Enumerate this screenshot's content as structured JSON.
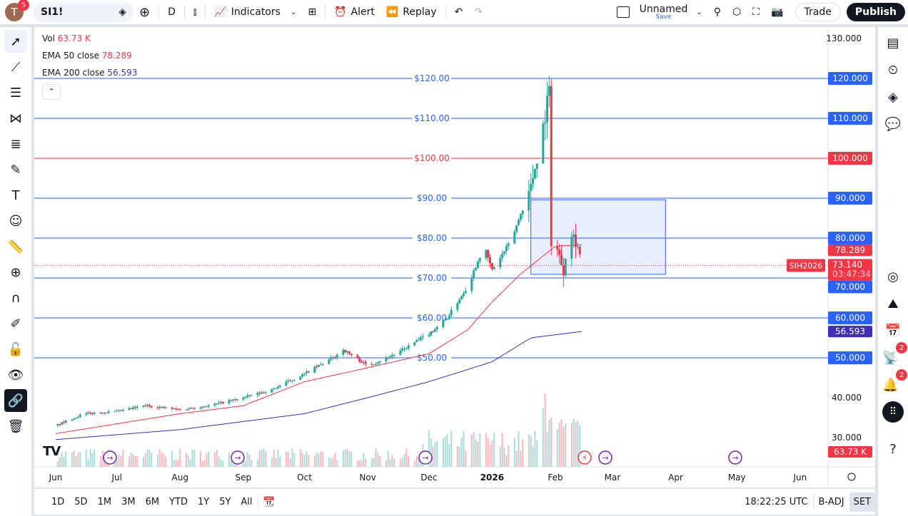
{
  "header": {
    "avatar_letter": "T",
    "notifications": "5",
    "symbol": "SI1!",
    "interval": "D",
    "indicators": "Indicators",
    "alert": "Alert",
    "replay": "Replay",
    "layout_name": "Unnamed",
    "layout_save": "Save",
    "trade": "Trade",
    "publish": "Publish"
  },
  "legend": {
    "vol_label": "Vol",
    "vol_value": "63.73 K",
    "ema50_label": "EMA 50 close",
    "ema50_value": "78.289",
    "ema200_label": "EMA 200 close",
    "ema200_value": "56.593"
  },
  "colors": {
    "up": "#26a69a",
    "down": "#f23645",
    "ema50": "#f23645",
    "ema200": "#3f2fb5",
    "hline": "#2962ff",
    "accent": "#2962ff"
  },
  "chart_data": {
    "type": "candlestick",
    "symbol": "SIH2026",
    "last_price": "73.140",
    "countdown": "03:47:34",
    "price_axis": [
      "130.000",
      "120.000",
      "110.000",
      "100.000",
      "90.000",
      "80.000",
      "70.000",
      "60.000",
      "50.000",
      "40.000",
      "30.000"
    ],
    "time_axis": [
      "Jun",
      "Jul",
      "Aug",
      "Sep",
      "Oct",
      "Nov",
      "Dec",
      "2026",
      "Feb",
      "Mar",
      "Apr",
      "May",
      "Jun"
    ],
    "horizontal_lines": [
      {
        "price": 120,
        "label": "$120.00",
        "axis": "120.000"
      },
      {
        "price": 110,
        "label": "$110.00",
        "axis": "110.000"
      },
      {
        "price": 100,
        "label": "$100.00",
        "axis": "100.000",
        "color": "#f23645"
      },
      {
        "price": 90,
        "label": "$90.00",
        "axis": "90.000"
      },
      {
        "price": 80,
        "label": "$80.00",
        "axis": "80.000"
      },
      {
        "price": 70,
        "label": "$70.00",
        "axis": "70.000"
      },
      {
        "price": 60,
        "label": "$60.00",
        "axis": "60.000"
      },
      {
        "price": 50,
        "label": "$50.00",
        "axis": "50.000"
      }
    ],
    "rectangle": {
      "from": "2026-01-20",
      "to": "2026-03-27",
      "top": 89.6,
      "bottom": 70.9
    },
    "close_anchors": [
      [
        "2025-06-01",
        33
      ],
      [
        "2025-06-15",
        36
      ],
      [
        "2025-07-01",
        36.5
      ],
      [
        "2025-07-15",
        38
      ],
      [
        "2025-08-01",
        37
      ],
      [
        "2025-08-15",
        38
      ],
      [
        "2025-09-01",
        40
      ],
      [
        "2025-09-15",
        42
      ],
      [
        "2025-10-01",
        46
      ],
      [
        "2025-10-15",
        50
      ],
      [
        "2025-10-20",
        52
      ],
      [
        "2025-11-01",
        48
      ],
      [
        "2025-11-15",
        51
      ],
      [
        "2025-12-01",
        56
      ],
      [
        "2025-12-10",
        60
      ],
      [
        "2025-12-20",
        68
      ],
      [
        "2025-12-28",
        78
      ],
      [
        "2026-01-01",
        72
      ],
      [
        "2026-01-10",
        79
      ],
      [
        "2026-01-20",
        93
      ],
      [
        "2026-01-25",
        105
      ],
      [
        "2026-01-29",
        117
      ],
      [
        "2026-01-30",
        80
      ],
      [
        "2026-02-02",
        77
      ],
      [
        "2026-02-05",
        72
      ],
      [
        "2026-02-08",
        83
      ],
      [
        "2026-02-12",
        78
      ],
      [
        "2026-02-14",
        73.14
      ]
    ],
    "ema50": [
      [
        "2025-06-01",
        31
      ],
      [
        "2025-08-01",
        36
      ],
      [
        "2025-09-01",
        38
      ],
      [
        "2025-10-01",
        44
      ],
      [
        "2025-11-01",
        47.5
      ],
      [
        "2025-12-01",
        51
      ],
      [
        "2025-12-20",
        57
      ],
      [
        "2026-01-01",
        64
      ],
      [
        "2026-01-15",
        71
      ],
      [
        "2026-02-01",
        78
      ],
      [
        "2026-02-14",
        78.29
      ]
    ],
    "ema200": [
      [
        "2025-06-01",
        29.5
      ],
      [
        "2025-08-01",
        32
      ],
      [
        "2025-10-01",
        36
      ],
      [
        "2025-11-01",
        40
      ],
      [
        "2025-12-01",
        44
      ],
      [
        "2026-01-01",
        49
      ],
      [
        "2026-01-20",
        55
      ],
      [
        "2026-02-14",
        56.59
      ]
    ],
    "volume_last": "63.73 K"
  },
  "bottom": {
    "ranges": [
      "1D",
      "5D",
      "1M",
      "3M",
      "6M",
      "YTD",
      "1Y",
      "5Y",
      "All"
    ],
    "time": "18:22:25 UTC",
    "badj": "B-ADJ",
    "set": "SET"
  },
  "right_badges": {
    "ideas": "2",
    "alerts": "2"
  }
}
